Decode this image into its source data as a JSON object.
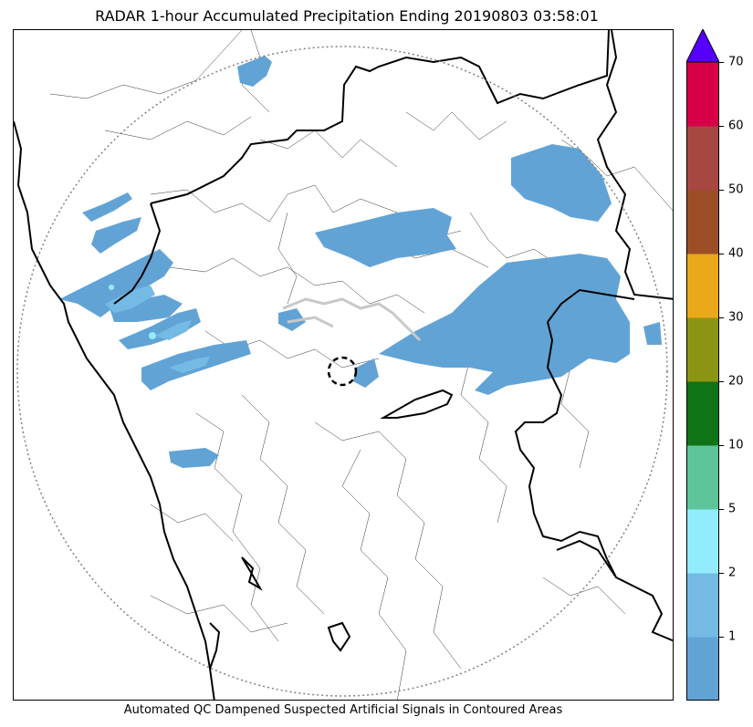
{
  "title": "RADAR 1-hour Accumulated Precipitation Ending 20190803 03:58:01",
  "caption": "Automated QC Dampened Suspected Artificial Signals in Contoured Areas",
  "colorbar": {
    "levels": [
      {
        "color": "#62a3d6"
      },
      {
        "color": "#73bbe5",
        "label": "1"
      },
      {
        "color": "#92ecfc",
        "label": "2"
      },
      {
        "color": "#5ec49a",
        "label": "5"
      },
      {
        "color": "#0e7416",
        "label": "10"
      },
      {
        "color": "#8c9513",
        "label": "20"
      },
      {
        "color": "#e9a919",
        "label": "30"
      },
      {
        "color": "#9c4e27",
        "label": "40"
      },
      {
        "color": "#a74742",
        "label": "50"
      },
      {
        "color": "#d70048",
        "label": "60"
      }
    ],
    "top_label": "70",
    "over_color": "#5500ff"
  },
  "colors": {
    "precip": "#62a3d6",
    "precip_light": "#73bbe5",
    "precip_cyan": "#92ecfc",
    "state_border": "#000000",
    "district_border": "#333333",
    "range_ring": "#808080",
    "qc_contour": "#c8c8c8"
  }
}
